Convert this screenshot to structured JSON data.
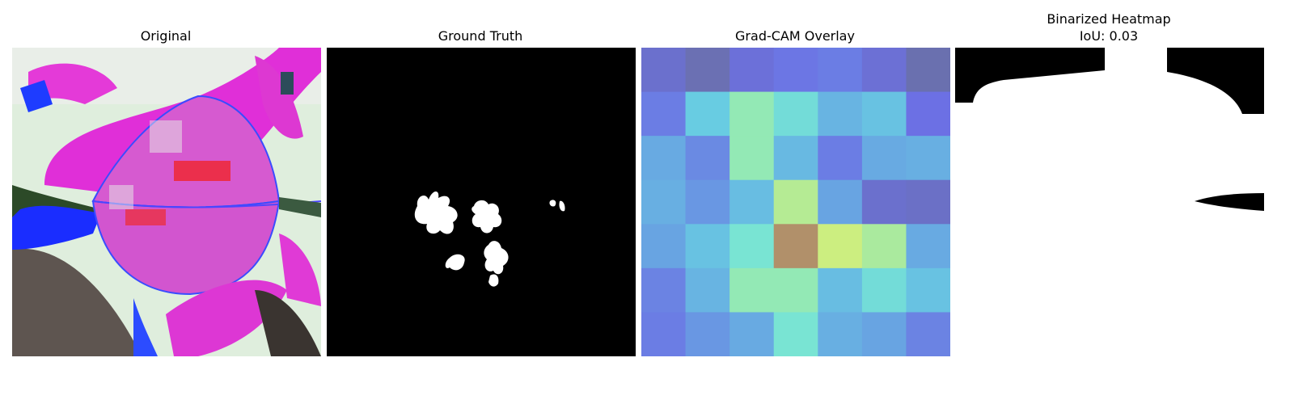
{
  "panels": {
    "original": {
      "title": "Original"
    },
    "ground_truth": {
      "title": "Ground Truth"
    },
    "gradcam": {
      "title": "Grad-CAM Overlay"
    },
    "binarized": {
      "title": "Binarized Heatmap",
      "subtitle": "IoU: 0.03"
    }
  },
  "chart_data": [
    {
      "type": "image",
      "title": "Original",
      "content": "leaf-photo-color-enhanced"
    },
    {
      "type": "image",
      "title": "Ground Truth",
      "content": "binary-mask",
      "colors": {
        "background": "#000000",
        "foreground": "#ffffff"
      }
    },
    {
      "type": "heatmap",
      "title": "Grad-CAM Overlay",
      "rows": 7,
      "cols": 7,
      "values": [
        [
          0.12,
          0.05,
          0.15,
          0.2,
          0.22,
          0.14,
          0.04
        ],
        [
          0.22,
          0.5,
          0.62,
          0.54,
          0.4,
          0.46,
          0.18
        ],
        [
          0.36,
          0.26,
          0.62,
          0.42,
          0.22,
          0.36,
          0.38
        ],
        [
          0.38,
          0.3,
          0.44,
          0.68,
          0.34,
          0.12,
          0.1
        ],
        [
          0.34,
          0.46,
          0.56,
          0.95,
          0.72,
          0.66,
          0.36
        ],
        [
          0.24,
          0.4,
          0.62,
          0.62,
          0.44,
          0.54,
          0.46
        ],
        [
          0.22,
          0.3,
          0.36,
          0.56,
          0.38,
          0.34,
          0.24
        ]
      ]
    },
    {
      "type": "image",
      "title": "Binarized Heatmap",
      "subtitle": "IoU: 0.03",
      "iou": 0.03,
      "colors": {
        "background": "#ffffff",
        "foreground": "#000000"
      }
    }
  ]
}
